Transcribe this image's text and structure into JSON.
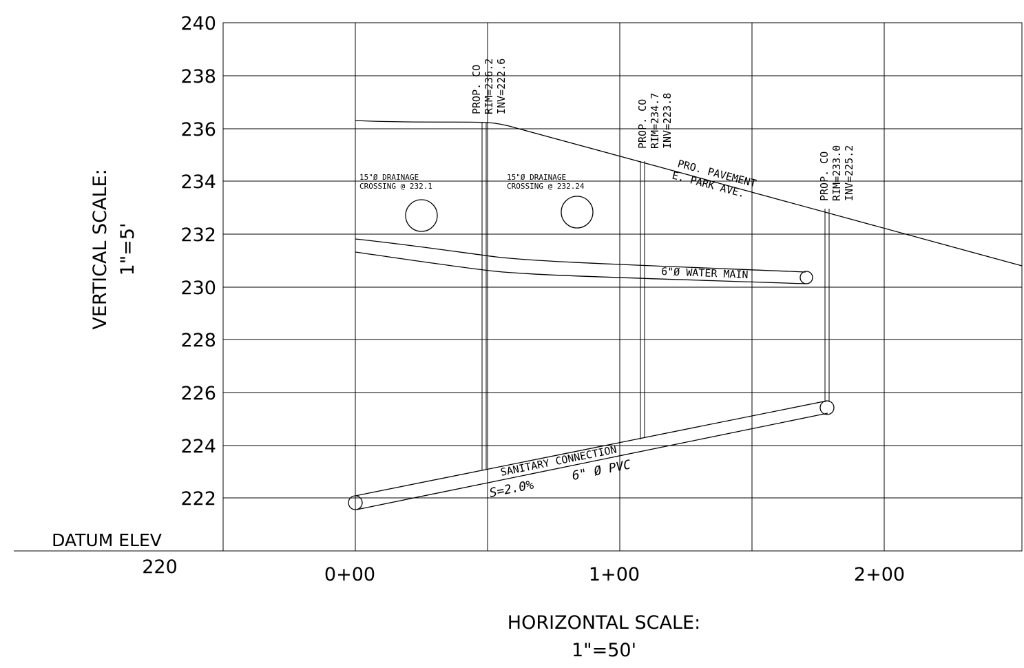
{
  "vertical_scale": {
    "label": "VERTICAL SCALE:",
    "value": "1\"=5'"
  },
  "horizontal_scale": {
    "label": "HORIZONTAL SCALE:",
    "value": "1\"=50'"
  },
  "datum": {
    "label": "DATUM ELEV",
    "value": "220"
  },
  "y_ticks": [
    "240",
    "238",
    "236",
    "234",
    "232",
    "230",
    "228",
    "226",
    "224",
    "222"
  ],
  "x_ticks": [
    "0+00",
    "1+00",
    "2+00"
  ],
  "cleanouts": [
    {
      "title": "PROP. CO",
      "rim": "RIM=236.2",
      "inv": "INV=222.6"
    },
    {
      "title": "PROP. CO",
      "rim": "RIM=234.7",
      "inv": "INV=223.8"
    },
    {
      "title": "PROP. CO",
      "rim": "RIM=233.0",
      "inv": "INV=225.2"
    }
  ],
  "drainage": [
    {
      "line1": "15\"Ø DRAINAGE",
      "line2": "CROSSING @ 232.1"
    },
    {
      "line1": "15\"Ø DRAINAGE",
      "line2": "CROSSING @ 232.24"
    }
  ],
  "pavement": {
    "line1": "PRO. PAVEMENT",
    "line2": "E. PARK AVE."
  },
  "water_main": {
    "label": "6\"Ø WATER MAIN"
  },
  "sanitary": {
    "line1": "SANITARY CONNECTION",
    "line2": "S=2.0%",
    "line3": "6\" Ø PVC"
  },
  "chart_data": {
    "type": "line",
    "x_range": [
      0,
      252
    ],
    "y_range": [
      220,
      240
    ],
    "series": []
  }
}
